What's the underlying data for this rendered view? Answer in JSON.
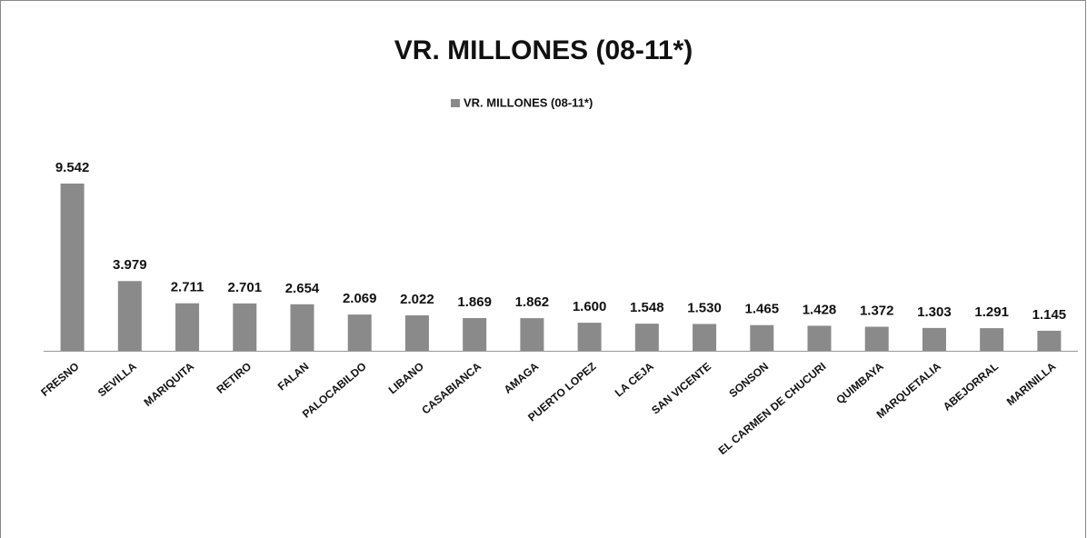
{
  "chart_data": {
    "type": "bar",
    "title": "VR. MILLONES (08-11*)",
    "categories": [
      "FRESNO",
      "SEVILLA",
      "MARIQUITA",
      "RETIRO",
      "FALAN",
      "PALOCABILDO",
      "LIBANO",
      "CASABIANCA",
      "AMAGA",
      "PUERTO LOPEZ",
      "LA CEJA",
      "SAN VICENTE",
      "SONSON",
      "EL CARMEN DE CHUCURI",
      "QUIMBAYA",
      "MARQUETALIA",
      "ABEJORRAL",
      "MARINILLA"
    ],
    "series": [
      {
        "name": "VR. MILLONES (08-11*)",
        "color": "#8a8a8a",
        "values": [
          9.542,
          3.979,
          2.711,
          2.701,
          2.654,
          2.069,
          2.022,
          1.869,
          1.862,
          1.6,
          1.548,
          1.53,
          1.465,
          1.428,
          1.372,
          1.303,
          1.291,
          1.145
        ],
        "value_labels": [
          "9.542",
          "3.979",
          "2.711",
          "2.701",
          "2.654",
          "2.069",
          "2.022",
          "1.869",
          "1.862",
          "1.600",
          "1.548",
          "1.530",
          "1.465",
          "1.428",
          "1.372",
          "1.303",
          "1.291",
          "1.145"
        ]
      }
    ],
    "legend": "top"
  }
}
